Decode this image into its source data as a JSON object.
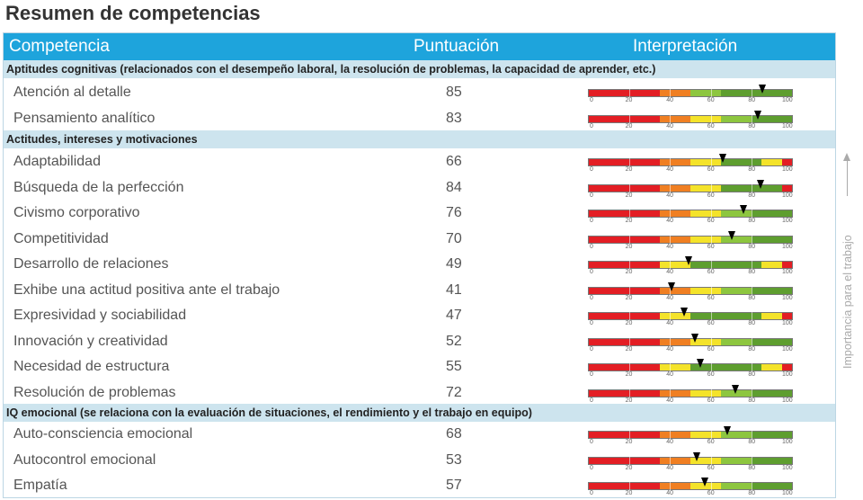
{
  "page_title": "Resumen de competencias",
  "header": {
    "competencia": "Competencia",
    "puntuacion": "Puntuación",
    "interpretacion": "Interpretación"
  },
  "side_label": "Importancia para el trabajo",
  "scale_labels": [
    "0",
    "20",
    "40",
    "60",
    "80",
    "100"
  ],
  "colors": {
    "red": "#e31e24",
    "orange": "#f07f22",
    "yellow": "#f4e32a",
    "lightgreen": "#8dc63f",
    "green": "#5e9e2f"
  },
  "sections": [
    {
      "title": "Aptitudes cognitivas (relacionados con el desempeño laboral, la resolución de problemas, la capacidad de aprender, etc.)",
      "rows": [
        {
          "name": "Atención al detalle",
          "score": "85",
          "value": 85,
          "bands": [
            "red",
            "red",
            "red",
            "red",
            "red",
            "red",
            "red",
            "orange",
            "orange",
            "orange",
            "lightgreen",
            "lightgreen",
            "lightgreen",
            "green",
            "green",
            "green",
            "green",
            "green",
            "green",
            "green"
          ]
        },
        {
          "name": "Pensamiento analítico",
          "score": "83",
          "value": 83,
          "bands": [
            "red",
            "red",
            "red",
            "red",
            "red",
            "red",
            "red",
            "orange",
            "orange",
            "orange",
            "yellow",
            "yellow",
            "yellow",
            "lightgreen",
            "lightgreen",
            "lightgreen",
            "green",
            "green",
            "green",
            "green"
          ]
        }
      ]
    },
    {
      "title": "Actitudes, intereses y motivaciones",
      "rows": [
        {
          "name": "Adaptabilidad",
          "score": "66",
          "value": 66,
          "bands": [
            "red",
            "red",
            "red",
            "red",
            "red",
            "red",
            "red",
            "orange",
            "orange",
            "orange",
            "yellow",
            "yellow",
            "yellow",
            "green",
            "green",
            "green",
            "green",
            "yellow",
            "yellow",
            "red"
          ]
        },
        {
          "name": "Búsqueda de la perfección",
          "score": "84",
          "value": 84,
          "bands": [
            "red",
            "red",
            "red",
            "red",
            "red",
            "red",
            "red",
            "orange",
            "orange",
            "orange",
            "yellow",
            "yellow",
            "yellow",
            "green",
            "green",
            "green",
            "green",
            "green",
            "green",
            "red"
          ]
        },
        {
          "name": "Civismo corporativo",
          "score": "76",
          "value": 76,
          "bands": [
            "red",
            "red",
            "red",
            "red",
            "red",
            "red",
            "red",
            "orange",
            "orange",
            "orange",
            "yellow",
            "yellow",
            "yellow",
            "lightgreen",
            "lightgreen",
            "lightgreen",
            "green",
            "green",
            "green",
            "green"
          ]
        },
        {
          "name": "Competitividad",
          "score": "70",
          "value": 70,
          "bands": [
            "red",
            "red",
            "red",
            "red",
            "red",
            "red",
            "red",
            "orange",
            "orange",
            "orange",
            "yellow",
            "yellow",
            "yellow",
            "lightgreen",
            "lightgreen",
            "lightgreen",
            "green",
            "green",
            "green",
            "green"
          ]
        },
        {
          "name": "Desarrollo de relaciones",
          "score": "49",
          "value": 49,
          "bands": [
            "red",
            "red",
            "red",
            "red",
            "red",
            "red",
            "red",
            "yellow",
            "yellow",
            "yellow",
            "green",
            "green",
            "green",
            "green",
            "green",
            "green",
            "green",
            "yellow",
            "yellow",
            "red"
          ]
        },
        {
          "name": "Exhibe una actitud positiva ante el trabajo",
          "score": "41",
          "value": 41,
          "bands": [
            "red",
            "red",
            "red",
            "red",
            "red",
            "red",
            "red",
            "orange",
            "orange",
            "orange",
            "yellow",
            "yellow",
            "yellow",
            "lightgreen",
            "lightgreen",
            "lightgreen",
            "green",
            "green",
            "green",
            "green"
          ]
        },
        {
          "name": "Expresividad y sociabilidad",
          "score": "47",
          "value": 47,
          "bands": [
            "red",
            "red",
            "red",
            "red",
            "red",
            "red",
            "red",
            "yellow",
            "yellow",
            "yellow",
            "green",
            "green",
            "green",
            "green",
            "green",
            "green",
            "green",
            "yellow",
            "yellow",
            "red"
          ]
        },
        {
          "name": "Innovación y creatividad",
          "score": "52",
          "value": 52,
          "bands": [
            "red",
            "red",
            "red",
            "red",
            "red",
            "red",
            "red",
            "orange",
            "orange",
            "orange",
            "yellow",
            "yellow",
            "yellow",
            "lightgreen",
            "lightgreen",
            "lightgreen",
            "green",
            "green",
            "green",
            "green"
          ]
        },
        {
          "name": "Necesidad de estructura",
          "score": "55",
          "value": 55,
          "bands": [
            "red",
            "red",
            "red",
            "red",
            "red",
            "red",
            "red",
            "yellow",
            "yellow",
            "yellow",
            "green",
            "green",
            "green",
            "green",
            "green",
            "green",
            "green",
            "yellow",
            "yellow",
            "red"
          ]
        },
        {
          "name": "Resolución de problemas",
          "score": "72",
          "value": 72,
          "bands": [
            "red",
            "red",
            "red",
            "red",
            "red",
            "red",
            "red",
            "orange",
            "orange",
            "orange",
            "yellow",
            "yellow",
            "yellow",
            "lightgreen",
            "lightgreen",
            "lightgreen",
            "green",
            "green",
            "green",
            "green"
          ]
        }
      ]
    },
    {
      "title": "IQ emocional (se relaciona con la evaluación de situaciones, el rendimiento y el trabajo en equipo)",
      "rows": [
        {
          "name": "Auto-consciencia emocional",
          "score": "68",
          "value": 68,
          "bands": [
            "red",
            "red",
            "red",
            "red",
            "red",
            "red",
            "red",
            "orange",
            "orange",
            "orange",
            "yellow",
            "yellow",
            "yellow",
            "lightgreen",
            "lightgreen",
            "lightgreen",
            "green",
            "green",
            "green",
            "green"
          ]
        },
        {
          "name": "Autocontrol emocional",
          "score": "53",
          "value": 53,
          "bands": [
            "red",
            "red",
            "red",
            "red",
            "red",
            "red",
            "red",
            "orange",
            "orange",
            "orange",
            "yellow",
            "yellow",
            "yellow",
            "lightgreen",
            "lightgreen",
            "lightgreen",
            "green",
            "green",
            "green",
            "green"
          ]
        },
        {
          "name": "Empatía",
          "score": "57",
          "value": 57,
          "bands": [
            "red",
            "red",
            "red",
            "red",
            "red",
            "red",
            "red",
            "orange",
            "orange",
            "orange",
            "yellow",
            "yellow",
            "yellow",
            "lightgreen",
            "lightgreen",
            "lightgreen",
            "green",
            "green",
            "green",
            "green"
          ]
        }
      ]
    }
  ]
}
